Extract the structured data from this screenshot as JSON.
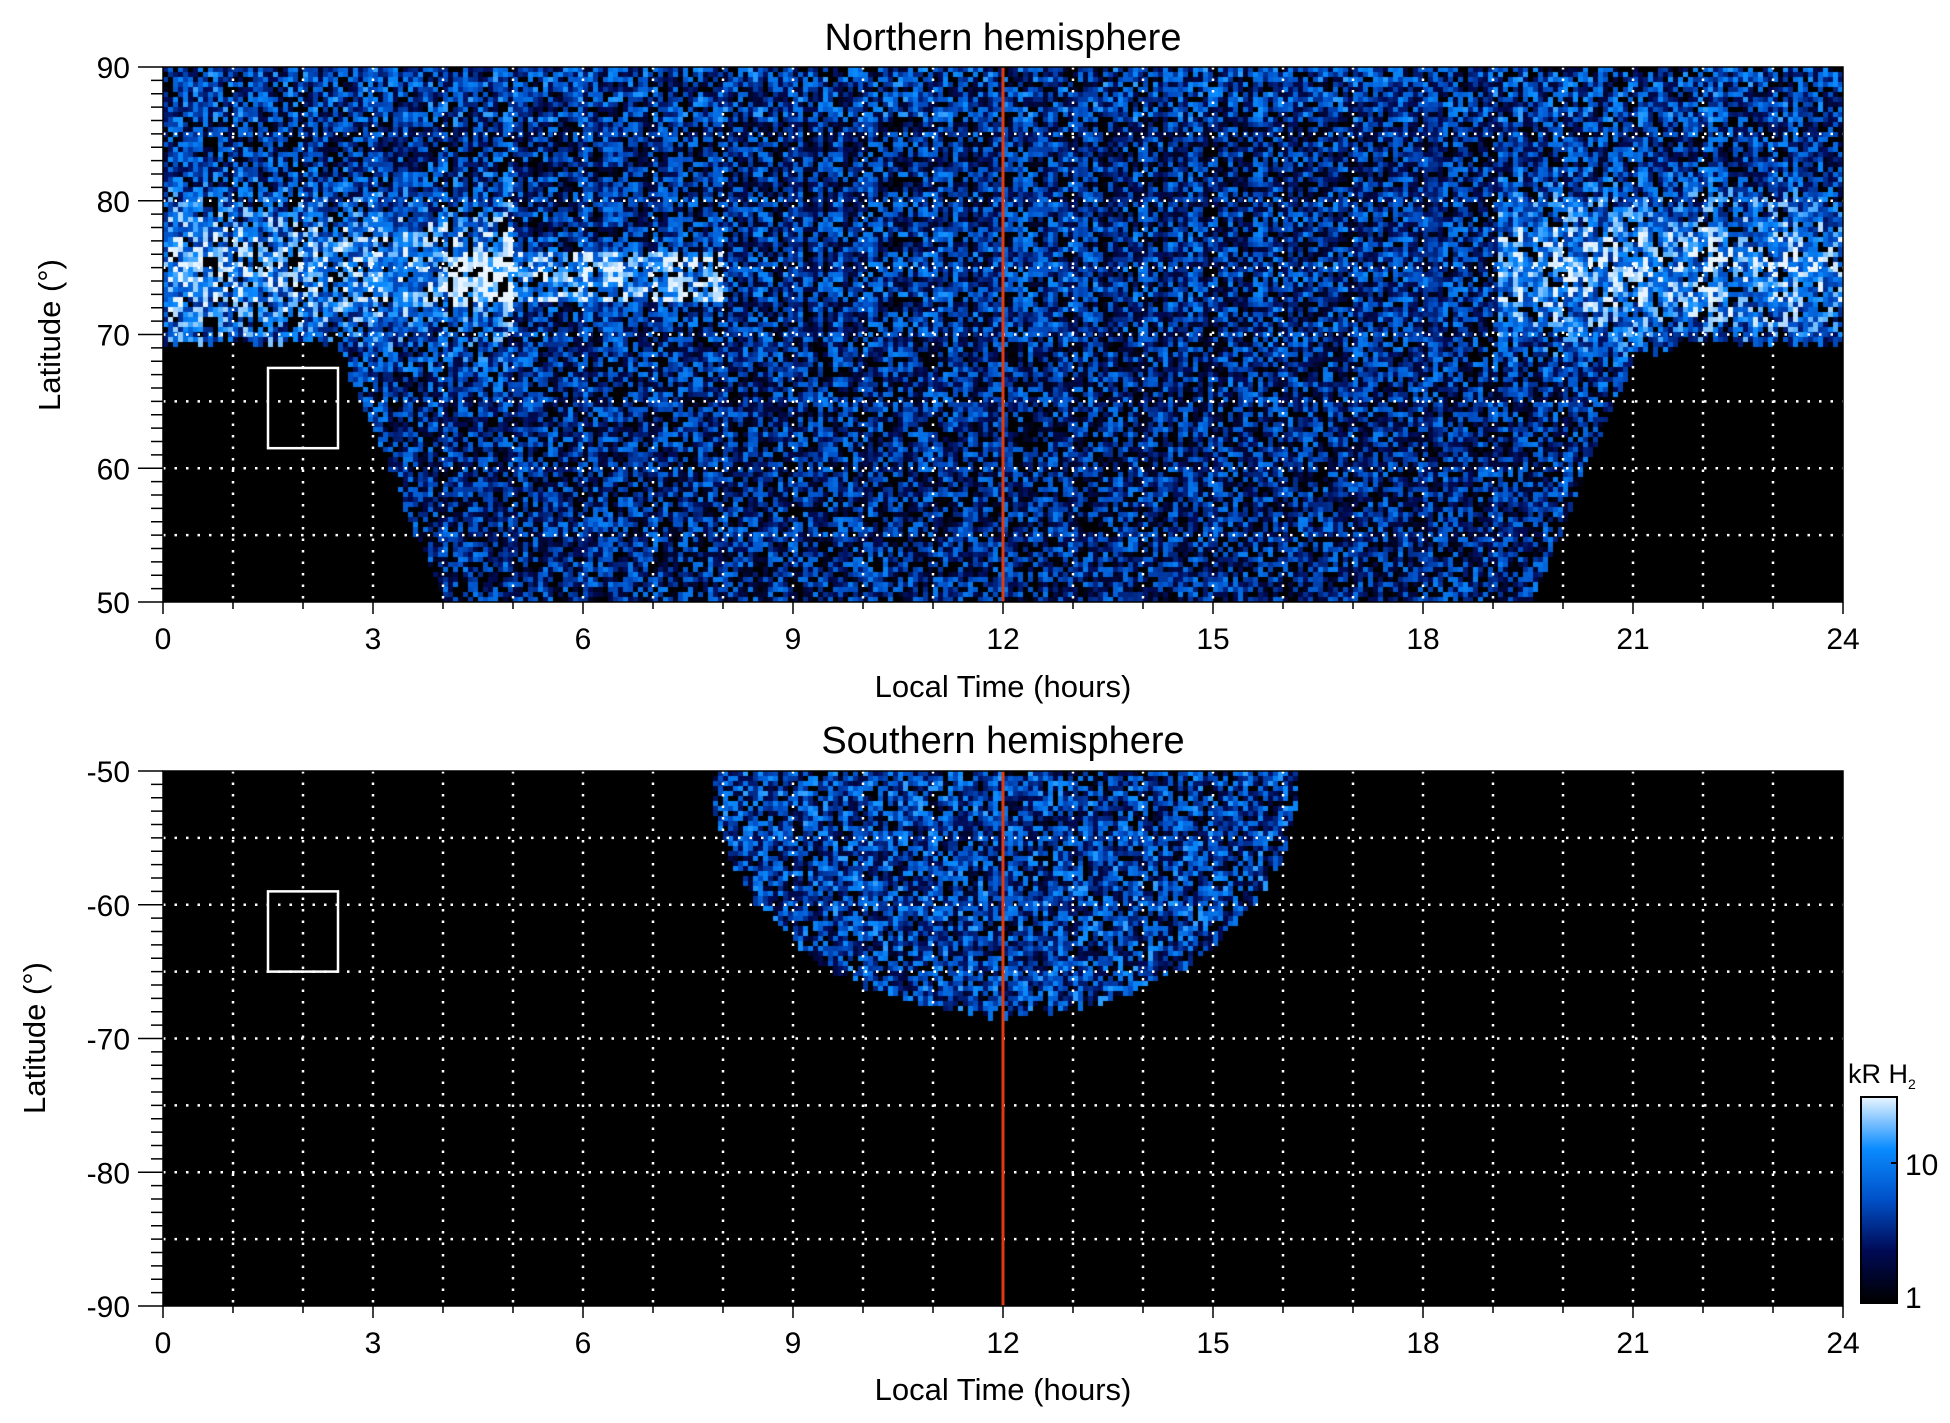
{
  "chart_data": [
    {
      "type": "heatmap",
      "title": "Northern hemisphere",
      "xlabel": "Local Time (hours)",
      "ylabel": "Latitude (°)",
      "xlim": [
        0,
        24
      ],
      "ylim": [
        50,
        90
      ],
      "xticks": [
        0,
        3,
        6,
        9,
        12,
        15,
        18,
        21,
        24
      ],
      "yticks": [
        50,
        60,
        70,
        80,
        90
      ],
      "grid": "dotted, every 1 h and 5°",
      "noon_line": 12,
      "highlight_box": {
        "x": [
          1.5,
          2.5
        ],
        "y": [
          61.5,
          67.5
        ]
      },
      "coverage": "poleward of ~70° at 0-3 h and 21-24 h; down to 50° between ~4 h and ~19.5 h",
      "features": "bright auroral arcs near 0-4 h and 19-24 h at 65-80°; bright patch near 5-8 h at ~75°"
    },
    {
      "type": "heatmap",
      "title": "Southern hemisphere",
      "xlabel": "Local Time (hours)",
      "ylabel": "Latitude (°)",
      "xlim": [
        0,
        24
      ],
      "ylim": [
        -90,
        -50
      ],
      "xticks": [
        0,
        3,
        6,
        9,
        12,
        15,
        18,
        21,
        24
      ],
      "yticks": [
        -90,
        -80,
        -70,
        -60,
        -50
      ],
      "grid": "dotted, every 1 h and 5°",
      "noon_line": 12,
      "highlight_box": {
        "x": [
          1.5,
          2.5
        ],
        "y": [
          -65,
          -59
        ]
      },
      "coverage": "from ~8 h to ~16 h at -50°, reaching ~-68° near 12 h"
    }
  ],
  "colorbar": {
    "label": "kR H",
    "label_subscript": "2",
    "scale": "log",
    "range": [
      1,
      30
    ],
    "ticks": [
      "1",
      "10"
    ],
    "colors": [
      "#000000",
      "#000a55",
      "#0050c8",
      "#0a8cff",
      "#e8f4ff"
    ]
  },
  "tick_labels": {
    "x": [
      "0",
      "3",
      "6",
      "9",
      "12",
      "15",
      "18",
      "21",
      "24"
    ],
    "north_y": [
      "50",
      "60",
      "70",
      "80",
      "90"
    ],
    "south_y": [
      "-90",
      "-80",
      "-70",
      "-60",
      "-50"
    ]
  }
}
